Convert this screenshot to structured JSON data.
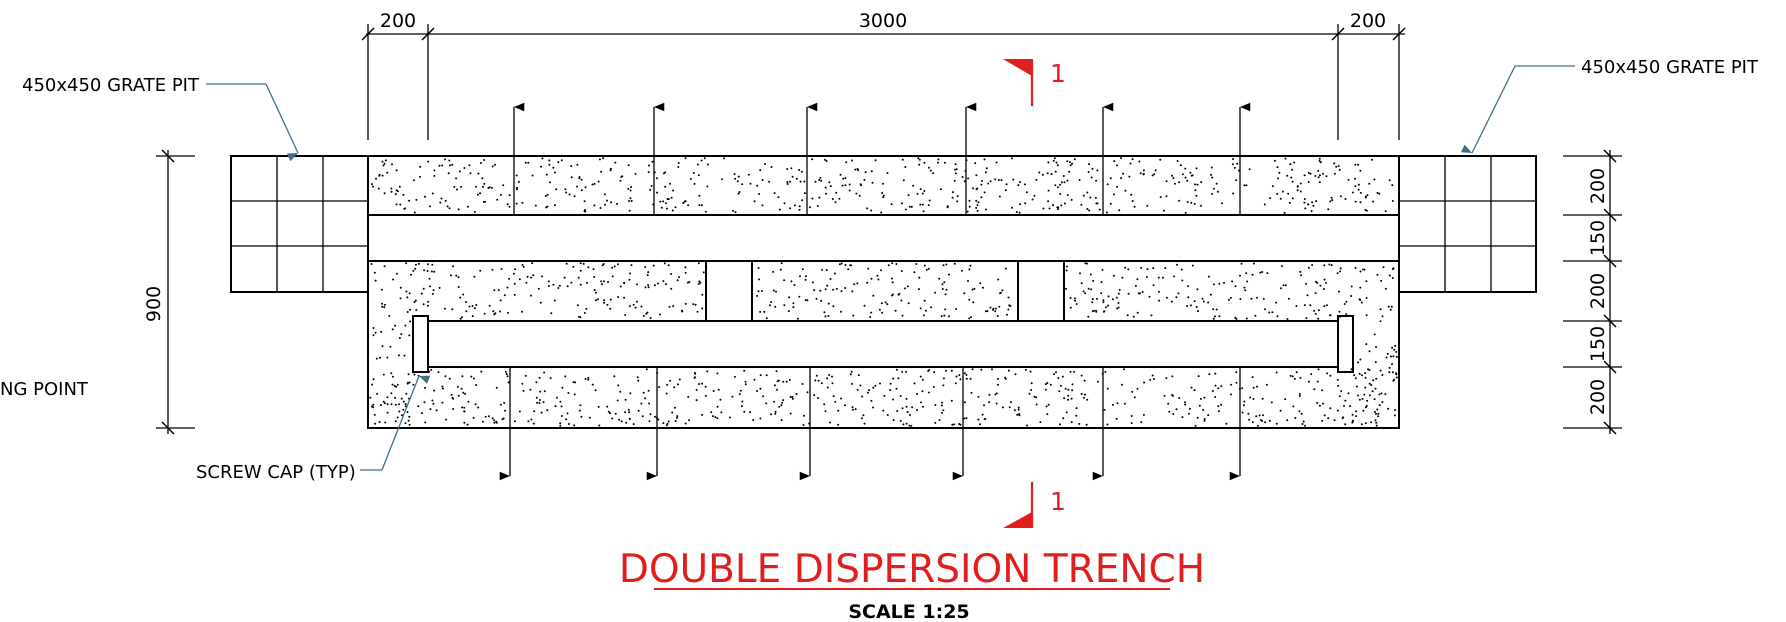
{
  "drawing": {
    "title": "DOUBLE DISPERSION TRENCH",
    "scale": "SCALE 1:25",
    "section_marker": "1",
    "labels": {
      "grate_pit_left": "450x450 GRATE PIT",
      "grate_pit_right": "450x450 GRATE PIT",
      "screw_cap": "SCREW CAP (TYP)",
      "connecting_point": "NG POINT"
    },
    "dimensions": {
      "top_left": "200",
      "top_middle": "3000",
      "top_right": "200",
      "overall_height": "900",
      "right_stack": [
        "200",
        "150",
        "200",
        "150",
        "200"
      ]
    },
    "colors": {
      "annotation_red": "#e21d1d",
      "leader_blue": "#3f6f86",
      "linework": "#000000"
    }
  }
}
